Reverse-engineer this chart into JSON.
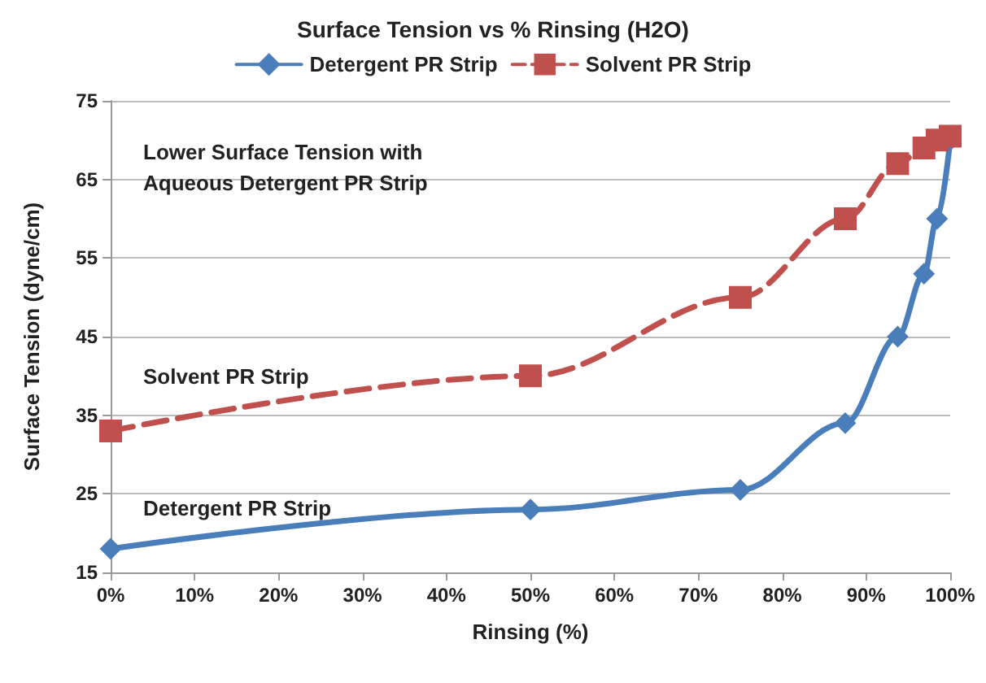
{
  "chart_data": {
    "type": "line",
    "title": "Surface Tension vs % Rinsing (H2O)",
    "xlabel": "Rinsing (%)",
    "ylabel": "Surface Tension (dyne/cm)",
    "x": [
      0,
      50,
      75,
      87.5,
      93.75,
      96.875,
      98.4375,
      100
    ],
    "series": [
      {
        "name": "Detergent PR Strip",
        "color": "#4a7ebb",
        "marker": "diamond",
        "line_style": "solid",
        "values": [
          18,
          23,
          25.5,
          34,
          45,
          53,
          60,
          70
        ]
      },
      {
        "name": "Solvent PR Strip",
        "color": "#c0504d",
        "marker": "square",
        "line_style": "dashed",
        "values": [
          33,
          40,
          50,
          60,
          67,
          69,
          70,
          70.5
        ]
      }
    ],
    "xlim": [
      0,
      100
    ],
    "xticks": [
      {
        "value": 0,
        "label": "0%"
      },
      {
        "value": 10,
        "label": "10%"
      },
      {
        "value": 20,
        "label": "20%"
      },
      {
        "value": 30,
        "label": "30%"
      },
      {
        "value": 40,
        "label": "40%"
      },
      {
        "value": 50,
        "label": "50%"
      },
      {
        "value": 60,
        "label": "60%"
      },
      {
        "value": 70,
        "label": "70%"
      },
      {
        "value": 80,
        "label": "80%"
      },
      {
        "value": 90,
        "label": "90%"
      },
      {
        "value": 100,
        "label": "100%"
      }
    ],
    "ylim": [
      15,
      75
    ],
    "yticks": [
      15,
      25,
      35,
      45,
      55,
      65,
      75
    ],
    "grid": "y",
    "legend": "top",
    "annotations": [
      "Lower Surface Tension with\nAqueous Detergent PR Strip",
      "Solvent PR Strip",
      "Detergent PR Strip"
    ]
  }
}
